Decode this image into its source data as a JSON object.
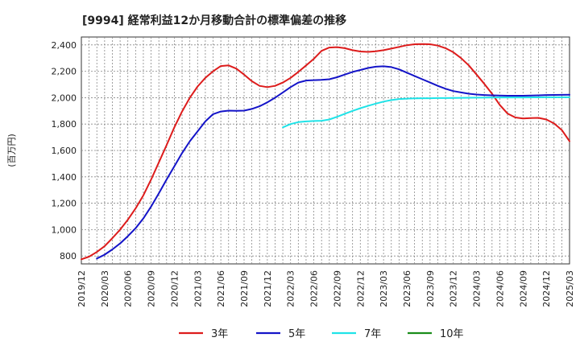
{
  "chart_data": {
    "type": "line",
    "title": "[9994]  経常利益12か月移動合計の標準偏差の推移",
    "ylabel": "(百万円)",
    "xlabel": "",
    "ylim": [
      740,
      2460
    ],
    "yticks": [
      800,
      1000,
      1200,
      1400,
      1600,
      1800,
      2000,
      2200,
      2400
    ],
    "ytick_labels": [
      "800",
      "1,000",
      "1,200",
      "1,400",
      "1,600",
      "1,800",
      "2,000",
      "2,200",
      "2,400"
    ],
    "xticks": [
      "2019/12",
      "2020/03",
      "2020/06",
      "2020/09",
      "2020/12",
      "2021/03",
      "2021/06",
      "2021/09",
      "2021/12",
      "2022/03",
      "2022/06",
      "2022/09",
      "2022/12",
      "2023/03",
      "2023/06",
      "2023/09",
      "2023/12",
      "2024/03",
      "2024/06",
      "2024/09",
      "2024/12",
      "2025/03"
    ],
    "grid": true,
    "legend_position": "bottom",
    "series": [
      {
        "name": "3年",
        "color": "#dd1c1c",
        "points": [
          [
            "2019/12",
            775
          ],
          [
            "2020/01",
            795
          ],
          [
            "2020/02",
            830
          ],
          [
            "2020/03",
            875
          ],
          [
            "2020/04",
            935
          ],
          [
            "2020/05",
            1000
          ],
          [
            "2020/06",
            1075
          ],
          [
            "2020/07",
            1160
          ],
          [
            "2020/08",
            1260
          ],
          [
            "2020/09",
            1380
          ],
          [
            "2020/10",
            1510
          ],
          [
            "2020/11",
            1640
          ],
          [
            "2020/12",
            1775
          ],
          [
            "2021/01",
            1895
          ],
          [
            "2021/02",
            2000
          ],
          [
            "2021/03",
            2085
          ],
          [
            "2021/04",
            2150
          ],
          [
            "2021/05",
            2200
          ],
          [
            "2021/06",
            2240
          ],
          [
            "2021/07",
            2245
          ],
          [
            "2021/08",
            2220
          ],
          [
            "2021/09",
            2175
          ],
          [
            "2021/10",
            2125
          ],
          [
            "2021/11",
            2090
          ],
          [
            "2021/12",
            2080
          ],
          [
            "2022/01",
            2090
          ],
          [
            "2022/02",
            2115
          ],
          [
            "2022/03",
            2150
          ],
          [
            "2022/04",
            2195
          ],
          [
            "2022/05",
            2245
          ],
          [
            "2022/06",
            2295
          ],
          [
            "2022/07",
            2355
          ],
          [
            "2022/08",
            2380
          ],
          [
            "2022/09",
            2383
          ],
          [
            "2022/10",
            2375
          ],
          [
            "2022/11",
            2360
          ],
          [
            "2022/12",
            2350
          ],
          [
            "2023/01",
            2347
          ],
          [
            "2023/02",
            2352
          ],
          [
            "2023/03",
            2360
          ],
          [
            "2023/04",
            2372
          ],
          [
            "2023/05",
            2385
          ],
          [
            "2023/06",
            2398
          ],
          [
            "2023/07",
            2405
          ],
          [
            "2023/08",
            2407
          ],
          [
            "2023/09",
            2405
          ],
          [
            "2023/10",
            2395
          ],
          [
            "2023/11",
            2375
          ],
          [
            "2023/12",
            2345
          ],
          [
            "2024/01",
            2300
          ],
          [
            "2024/02",
            2245
          ],
          [
            "2024/03",
            2175
          ],
          [
            "2024/04",
            2105
          ],
          [
            "2024/05",
            2030
          ],
          [
            "2024/06",
            1945
          ],
          [
            "2024/07",
            1880
          ],
          [
            "2024/08",
            1850
          ],
          [
            "2024/09",
            1842
          ],
          [
            "2024/10",
            1845
          ],
          [
            "2024/11",
            1847
          ],
          [
            "2024/12",
            1835
          ],
          [
            "2025/01",
            1805
          ],
          [
            "2025/02",
            1755
          ],
          [
            "2025/03",
            1670
          ]
        ]
      },
      {
        "name": "5年",
        "color": "#1414c8",
        "points": [
          [
            "2020/02",
            780
          ],
          [
            "2020/03",
            810
          ],
          [
            "2020/04",
            850
          ],
          [
            "2020/05",
            895
          ],
          [
            "2020/06",
            950
          ],
          [
            "2020/07",
            1010
          ],
          [
            "2020/08",
            1085
          ],
          [
            "2020/09",
            1175
          ],
          [
            "2020/10",
            1275
          ],
          [
            "2020/11",
            1380
          ],
          [
            "2020/12",
            1480
          ],
          [
            "2021/01",
            1580
          ],
          [
            "2021/02",
            1670
          ],
          [
            "2021/03",
            1745
          ],
          [
            "2021/04",
            1820
          ],
          [
            "2021/05",
            1875
          ],
          [
            "2021/06",
            1895
          ],
          [
            "2021/07",
            1902
          ],
          [
            "2021/08",
            1900
          ],
          [
            "2021/09",
            1902
          ],
          [
            "2021/10",
            1915
          ],
          [
            "2021/11",
            1935
          ],
          [
            "2021/12",
            1965
          ],
          [
            "2022/01",
            2000
          ],
          [
            "2022/02",
            2040
          ],
          [
            "2022/03",
            2080
          ],
          [
            "2022/04",
            2115
          ],
          [
            "2022/05",
            2130
          ],
          [
            "2022/06",
            2133
          ],
          [
            "2022/07",
            2135
          ],
          [
            "2022/08",
            2140
          ],
          [
            "2022/09",
            2155
          ],
          [
            "2022/10",
            2175
          ],
          [
            "2022/11",
            2195
          ],
          [
            "2022/12",
            2210
          ],
          [
            "2023/01",
            2225
          ],
          [
            "2023/02",
            2235
          ],
          [
            "2023/03",
            2238
          ],
          [
            "2023/04",
            2232
          ],
          [
            "2023/05",
            2215
          ],
          [
            "2023/06",
            2190
          ],
          [
            "2023/07",
            2165
          ],
          [
            "2023/08",
            2140
          ],
          [
            "2023/09",
            2115
          ],
          [
            "2023/10",
            2090
          ],
          [
            "2023/11",
            2068
          ],
          [
            "2023/12",
            2050
          ],
          [
            "2024/01",
            2040
          ],
          [
            "2024/02",
            2030
          ],
          [
            "2024/03",
            2024
          ],
          [
            "2024/04",
            2020
          ],
          [
            "2024/05",
            2018
          ],
          [
            "2024/06",
            2016
          ],
          [
            "2024/07",
            2015
          ],
          [
            "2024/08",
            2015
          ],
          [
            "2024/09",
            2015
          ],
          [
            "2024/10",
            2016
          ],
          [
            "2024/11",
            2018
          ],
          [
            "2024/12",
            2020
          ],
          [
            "2025/03",
            2022
          ]
        ]
      },
      {
        "name": "7年",
        "color": "#1fe3e8",
        "points": [
          [
            "2022/02",
            1775
          ],
          [
            "2022/03",
            1800
          ],
          [
            "2022/04",
            1815
          ],
          [
            "2022/05",
            1820
          ],
          [
            "2022/06",
            1823
          ],
          [
            "2022/07",
            1825
          ],
          [
            "2022/08",
            1835
          ],
          [
            "2022/09",
            1855
          ],
          [
            "2022/10",
            1878
          ],
          [
            "2022/11",
            1900
          ],
          [
            "2022/12",
            1920
          ],
          [
            "2023/01",
            1938
          ],
          [
            "2023/02",
            1955
          ],
          [
            "2023/03",
            1970
          ],
          [
            "2023/04",
            1982
          ],
          [
            "2023/05",
            1990
          ],
          [
            "2023/06",
            1993
          ],
          [
            "2023/07",
            1995
          ],
          [
            "2023/08",
            1996
          ],
          [
            "2023/09",
            1996
          ],
          [
            "2023/10",
            1997
          ],
          [
            "2023/11",
            1997
          ],
          [
            "2023/12",
            1998
          ],
          [
            "2024/03",
            2000
          ],
          [
            "2024/06",
            2002
          ],
          [
            "2024/09",
            2002
          ],
          [
            "2024/12",
            2003
          ],
          [
            "2025/03",
            2003
          ]
        ]
      },
      {
        "name": "10年",
        "color": "#1a8c1a",
        "points": []
      }
    ]
  }
}
